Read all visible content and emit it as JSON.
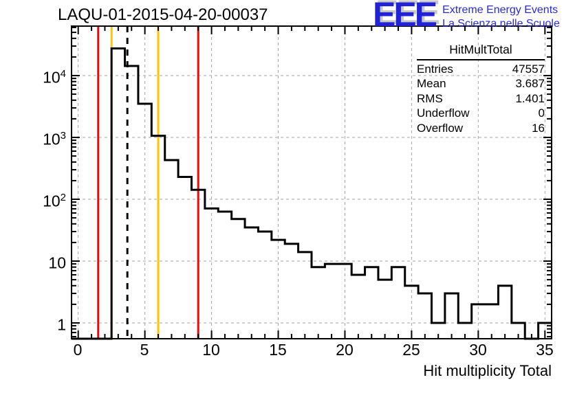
{
  "title": "LAQU-01-2015-04-20-00037",
  "logo": {
    "letters": "EEE",
    "line1": "Extreme Energy Events",
    "line2": "La Scienza nelle Scuole",
    "blue": "#2222d6",
    "shadow_gray": "#c8c8c8"
  },
  "stats": {
    "header": "HitMultTotal",
    "rows": [
      {
        "label": "Entries",
        "value": "47557"
      },
      {
        "label": "Mean",
        "value": "3.687"
      },
      {
        "label": "RMS",
        "value": "1.401"
      },
      {
        "label": "Underflow",
        "value": "0"
      },
      {
        "label": "Overflow",
        "value": "16"
      }
    ]
  },
  "chart_data": {
    "type": "bar",
    "subtype": "step-histogram-logy",
    "title": "LAQU-01-2015-04-20-00037",
    "xlabel": "Hit multiplicity Total",
    "ylabel": "",
    "grid": true,
    "xlim": [
      -0.5,
      35.5
    ],
    "ylim_log": [
      0.555,
      63000
    ],
    "x_bin_centers": [
      0,
      1,
      2,
      3,
      4,
      5,
      6,
      7,
      8,
      9,
      10,
      11,
      12,
      13,
      14,
      15,
      16,
      17,
      18,
      19,
      20,
      21,
      22,
      23,
      24,
      25,
      26,
      27,
      28,
      29,
      30,
      31,
      32,
      33,
      34,
      35
    ],
    "counts": [
      0,
      0,
      0,
      27500,
      14300,
      3500,
      1062,
      430,
      230,
      142,
      71,
      63,
      48,
      35,
      30,
      22,
      19,
      14,
      8,
      9,
      9,
      6,
      8,
      5,
      8,
      4,
      3,
      1,
      3,
      1,
      2,
      2,
      4,
      1,
      0,
      1
    ],
    "x_tick_values": [
      0,
      5,
      10,
      15,
      20,
      25,
      30,
      35
    ],
    "x_tick_labels": [
      "0",
      "5",
      "10",
      "15",
      "20",
      "25",
      "30",
      "35"
    ],
    "y_tick_values": [
      1,
      10,
      100,
      1000,
      10000
    ],
    "y_tick_labels": [
      {
        "base": "1",
        "exp": ""
      },
      {
        "base": "10",
        "exp": ""
      },
      {
        "base": "10",
        "exp": "2"
      },
      {
        "base": "10",
        "exp": "3"
      },
      {
        "base": "10",
        "exp": "4"
      }
    ],
    "hist_color": "#000000",
    "grid_color": "#a6a6a6",
    "vlines": [
      {
        "name": "red-cut-low",
        "x": 1.5,
        "color": "#ff0000",
        "style": "solid"
      },
      {
        "name": "yellow-cut-low",
        "x": 2.5,
        "color": "#ffc500",
        "style": "solid"
      },
      {
        "name": "yellow-cut-high",
        "x": 6,
        "color": "#ffc500",
        "style": "solid"
      },
      {
        "name": "red-cut-high",
        "x": 9,
        "color": "#ff0000",
        "style": "solid"
      },
      {
        "name": "mean-line",
        "x": 3.687,
        "color": "#000000",
        "style": "dashed"
      }
    ]
  }
}
